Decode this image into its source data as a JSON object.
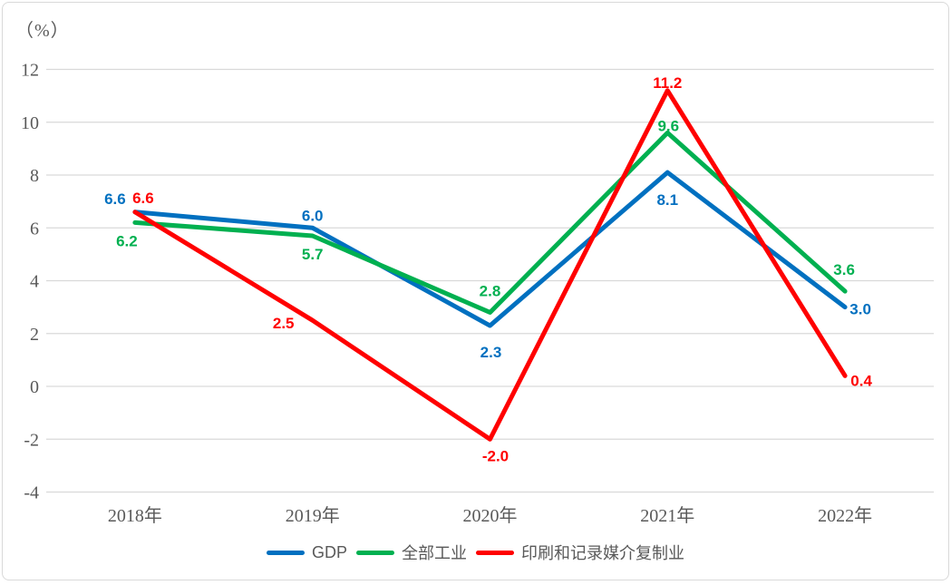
{
  "chart_data": {
    "type": "line",
    "unit_label": "（%）",
    "categories": [
      "2018年",
      "2019年",
      "2020年",
      "2021年",
      "2022年"
    ],
    "series": [
      {
        "name": "GDP",
        "color": "#0070C0",
        "values": [
          6.6,
          6.0,
          2.3,
          8.1,
          3.0
        ],
        "labels": [
          "6.6",
          "6.0",
          "2.3",
          "8.1",
          "3.0"
        ]
      },
      {
        "name": "全部工业",
        "color": "#00B050",
        "values": [
          6.2,
          5.7,
          2.8,
          9.6,
          3.6
        ],
        "labels": [
          "6.2",
          "5.7",
          "2.8",
          "9.6",
          "3.6"
        ]
      },
      {
        "name": "印刷和记录媒介复制业",
        "color": "#FF0000",
        "values": [
          6.6,
          2.5,
          -2.0,
          11.2,
          0.4
        ],
        "labels": [
          "6.6",
          "2.5",
          "-2.0",
          "11.2",
          "0.4"
        ]
      }
    ],
    "y_ticks": [
      12,
      10,
      8,
      6,
      4,
      2,
      0,
      -2,
      -4
    ],
    "y_tick_labels": [
      "12",
      "10",
      "8",
      "6",
      "4",
      "2",
      "0",
      "-2",
      "-4"
    ],
    "ylim": [
      -4,
      12
    ],
    "grid": true,
    "legend_position": "bottom",
    "data_labels_shown": true
  },
  "colors": {
    "gridline": "#D9D9D9",
    "axis_text": "#595959",
    "legend_text": "#595959",
    "border": "#D9D9D9",
    "background": "#FFFFFF"
  }
}
